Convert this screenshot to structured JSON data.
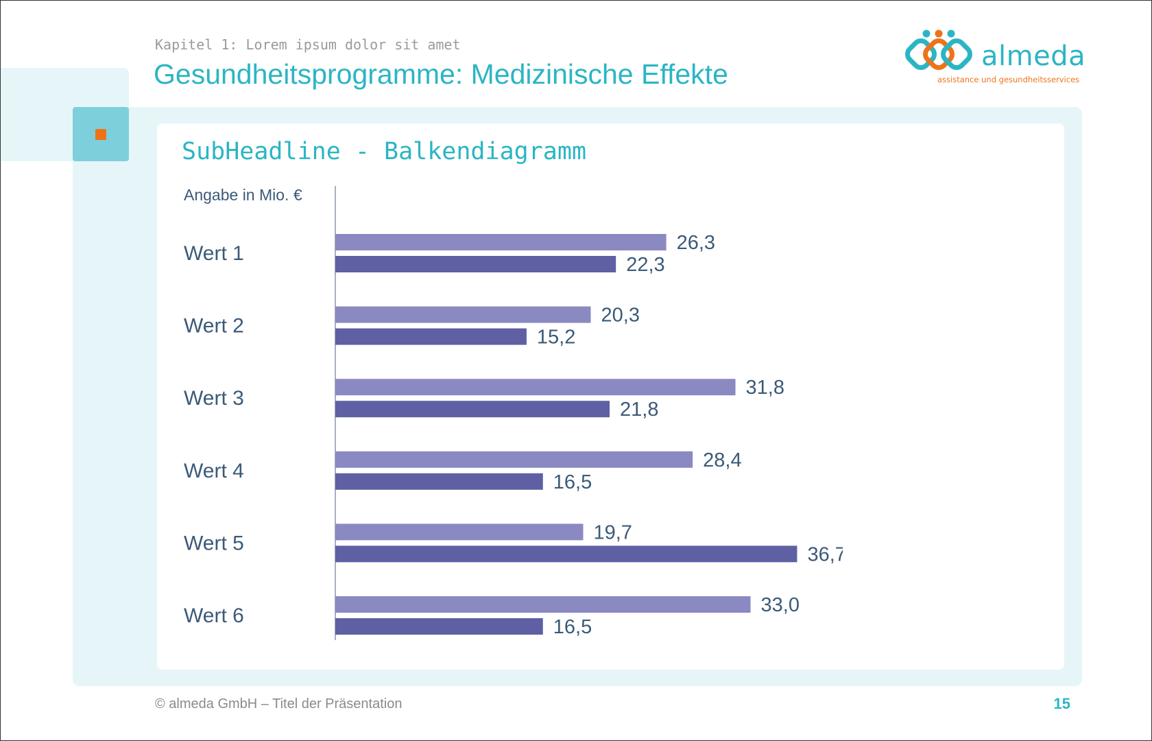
{
  "header": {
    "chapter": "Kapitel 1: Lorem ipsum dolor sit amet",
    "title": "Gesundheitsprogramme: Medizinische Effekte"
  },
  "logo": {
    "name": "almeda",
    "tagline": "assistance und gesundheitsservices",
    "icon": "almeda-people-logo-icon"
  },
  "content": {
    "subheadline": "SubHeadline - Balkendiagramm"
  },
  "chart_data": {
    "type": "bar",
    "orientation": "horizontal",
    "unit_label": "Angabe in Mio. €",
    "categories": [
      "Wert 1",
      "Wert 2",
      "Wert 3",
      "Wert 4",
      "Wert 5",
      "Wert 6"
    ],
    "series": [
      {
        "values": [
          26.3,
          20.3,
          31.8,
          28.4,
          19.7,
          33.0
        ],
        "labels": [
          "26,3",
          "20,3",
          "31,8",
          "28,4",
          "19,7",
          "33,0"
        ],
        "color": "#8b89c1"
      },
      {
        "values": [
          22.3,
          15.2,
          21.8,
          16.5,
          36.7,
          16.5
        ],
        "labels": [
          "22,3",
          "15,2",
          "21,8",
          "16,5",
          "36,7",
          "16,5"
        ],
        "color": "#5f5fa3"
      }
    ],
    "xlim": [
      0,
      40
    ],
    "grid": false,
    "legend": "none"
  },
  "footer": {
    "copyright": "© almeda GmbH – Titel der Präsentation",
    "page_number": "15"
  },
  "colors": {
    "accent": "#2bb5c4",
    "orange": "#ee7318",
    "panel": "#e6f5f8",
    "tab": "#7dcfdc",
    "text_dark": "#3b5a78"
  }
}
